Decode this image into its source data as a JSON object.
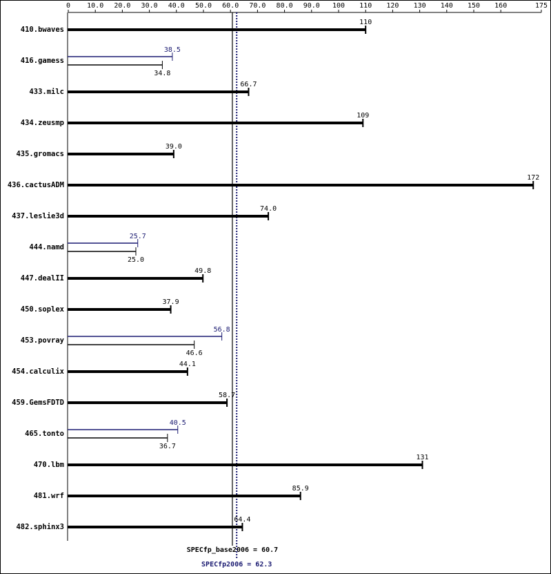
{
  "chart_data": {
    "type": "bar",
    "orientation": "horizontal",
    "categories": [
      "410.bwaves",
      "416.gamess",
      "433.milc",
      "434.zeusmp",
      "435.gromacs",
      "436.cactusADM",
      "437.leslie3d",
      "444.namd",
      "447.dealII",
      "450.soplex",
      "453.povray",
      "454.calculix",
      "459.GemsFDTD",
      "465.tonto",
      "470.lbm",
      "481.wrf",
      "482.sphinx3"
    ],
    "series": [
      {
        "color": "#000000",
        "values": [
          110,
          34.8,
          66.7,
          109,
          39.0,
          172,
          74.0,
          25.0,
          49.8,
          37.9,
          46.6,
          44.1,
          58.7,
          36.7,
          131,
          85.9,
          64.4
        ],
        "value_labels": [
          "110",
          "34.8",
          "66.7",
          "109",
          "39.0",
          "172",
          "74.0",
          "25.0",
          "49.8",
          "37.9",
          "46.6",
          "44.1",
          "58.7",
          "36.7",
          "131",
          "85.9",
          "64.4"
        ]
      },
      {
        "color": "#191970",
        "values": [
          null,
          38.5,
          null,
          null,
          null,
          null,
          null,
          25.7,
          null,
          null,
          56.8,
          null,
          null,
          40.5,
          null,
          null,
          null
        ],
        "value_labels": [
          null,
          "38.5",
          null,
          null,
          null,
          null,
          null,
          "25.7",
          null,
          null,
          "56.8",
          null,
          null,
          "40.5",
          null,
          null,
          null
        ]
      }
    ],
    "xlim": [
      0,
      175
    ],
    "xticks": [
      0,
      {
        "value": 10,
        "label": "10.0"
      },
      {
        "value": 20,
        "label": "20.0"
      },
      {
        "value": 30,
        "label": "30.0"
      },
      {
        "value": 40,
        "label": "40.0"
      },
      {
        "value": 50,
        "label": "50.0"
      },
      {
        "value": 60,
        "label": "60.0"
      },
      {
        "value": 70,
        "label": "70.0"
      },
      {
        "value": 80,
        "label": "80.0"
      },
      {
        "value": 90,
        "label": "90.0"
      },
      100,
      110,
      120,
      130,
      140,
      150,
      160,
      175
    ],
    "reference_lines": [
      {
        "value": 60.7,
        "label": "SPECfp_base2006 = 60.7",
        "color": "#000000",
        "style": "solid"
      },
      {
        "value": 62.3,
        "label": "SPECfp2006 = 62.3",
        "color": "#191970",
        "style": "dotted"
      }
    ]
  }
}
